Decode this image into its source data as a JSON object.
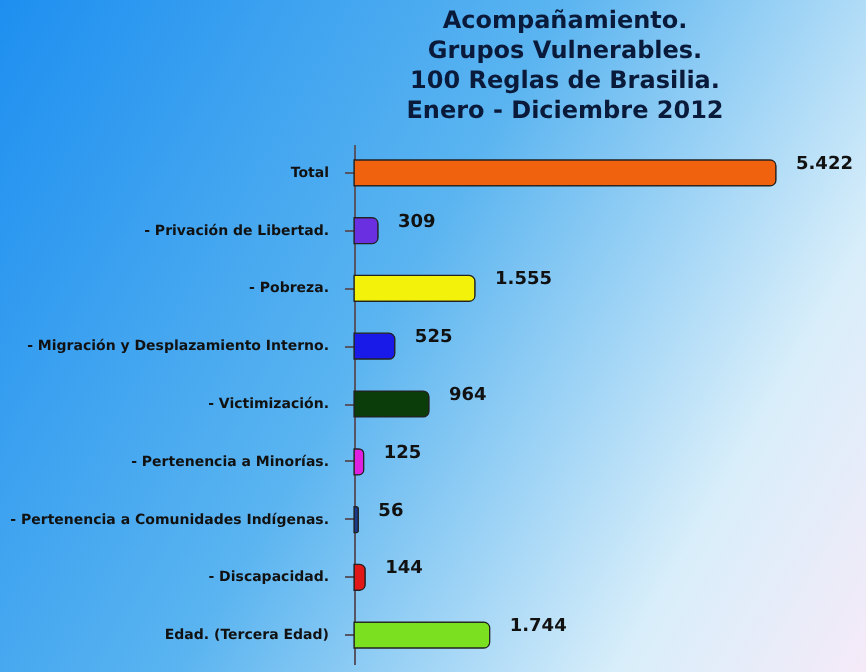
{
  "chart_data": {
    "type": "bar",
    "orientation": "horizontal",
    "title": "Acompañamiento.\nGrupos Vulnerables.\n100 Reglas de Brasilia.\nEnero - Diciembre 2012",
    "categories": [
      "Total",
      "- Privación de Libertad.",
      "- Pobreza.",
      "- Migración y Desplazamiento Interno.",
      "- Victimización.",
      "- Pertenencia a Minorías.",
      "- Pertenencia a Comunidades Indígenas.",
      "- Discapacidad.",
      "Edad. (Tercera Edad)"
    ],
    "values": [
      5422,
      309,
      1555,
      525,
      964,
      125,
      56,
      144,
      1744
    ],
    "value_labels": [
      "5.422",
      "309",
      "1.555",
      "525",
      "964",
      "125",
      "56",
      "144",
      "1.744"
    ],
    "colors": [
      "#f0620e",
      "#6a2fe0",
      "#f2f20a",
      "#1a1ae8",
      "#0b3d0b",
      "#e020e0",
      "#1a3a8a",
      "#e01818",
      "#7ae020"
    ],
    "grid": false
  }
}
